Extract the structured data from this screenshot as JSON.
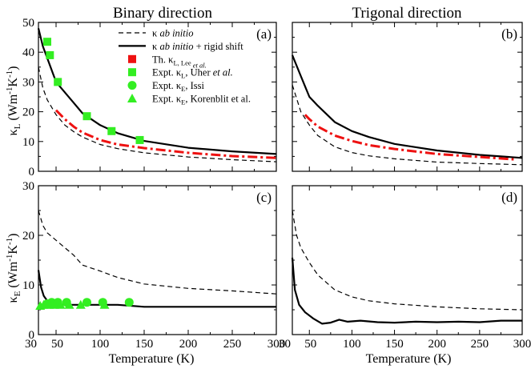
{
  "figure": {
    "title_left": "Binary direction",
    "title_right": "Trigonal direction",
    "x_label": "Temperature (K)",
    "y_label_top": {
      "sym": "κ",
      "sub": "L",
      "unit": "(Wm",
      "exp1": "-1",
      "mid": "K",
      "exp2": "-1",
      "close": ")"
    },
    "y_label_bottom": {
      "sym": "κ",
      "sub": "E",
      "unit": "(Wm",
      "exp1": "-1",
      "mid": "K",
      "exp2": "-1",
      "close": ")"
    },
    "colors": {
      "red": "#ee1111",
      "green": "#33ee22",
      "black": "#000000"
    }
  },
  "legend": [
    {
      "key": "dashed",
      "text": [
        {
          "t": "κ "
        },
        {
          "t": "ab initio",
          "style": "italic"
        }
      ]
    },
    {
      "key": "solid",
      "text": [
        {
          "t": "κ "
        },
        {
          "t": "ab initio",
          "style": "italic"
        },
        {
          "t": " + rigid shift"
        }
      ]
    },
    {
      "key": "red-square",
      "text": [
        {
          "t": "Th. κ"
        },
        {
          "t": "L, Lee ",
          "style": "sub"
        },
        {
          "t": "et al.",
          "style": "sub-italic"
        }
      ]
    },
    {
      "key": "green-square",
      "text": [
        {
          "t": "Expt. κ"
        },
        {
          "t": "L",
          "style": "sub"
        },
        {
          "t": ", Uher "
        },
        {
          "t": "et al.",
          "style": "italic"
        }
      ]
    },
    {
      "key": "green-circle",
      "text": [
        {
          "t": "Expt. κ"
        },
        {
          "t": "E",
          "style": "sub"
        },
        {
          "t": ", Issi"
        }
      ]
    },
    {
      "key": "green-triangle",
      "text": [
        {
          "t": "Expt. κ"
        },
        {
          "t": "E",
          "style": "sub"
        },
        {
          "t": ", Korenblit et al."
        }
      ]
    }
  ],
  "chart_data": [
    {
      "type": "line",
      "panel": "a",
      "tag": "(a)",
      "xlim": [
        30,
        300
      ],
      "ylim": [
        0,
        50
      ],
      "yticks": [
        "0",
        "10",
        "20",
        "30",
        "40",
        "50"
      ],
      "xticks": [],
      "series": [
        {
          "kind": "solid",
          "x": [
            30,
            35,
            40,
            50,
            60,
            70,
            80,
            100,
            120,
            150,
            200,
            250,
            300
          ],
          "y": [
            48,
            42,
            38,
            30,
            26.5,
            23,
            19.5,
            15.5,
            12.8,
            10.2,
            7.9,
            6.7,
            5.8
          ]
        },
        {
          "kind": "dashed",
          "x": [
            30,
            35,
            40,
            50,
            60,
            70,
            80,
            100,
            120,
            150,
            200,
            250,
            300
          ],
          "y": [
            35,
            28,
            24,
            19,
            15.5,
            13.3,
            11.5,
            9,
            7.6,
            6.2,
            4.8,
            3.9,
            3.2
          ]
        },
        {
          "kind": "dashdot",
          "x": [
            50,
            60,
            70,
            80,
            100,
            120,
            150,
            200,
            250,
            300
          ],
          "y": [
            20.5,
            17.5,
            15,
            13,
            10.5,
            9,
            7.8,
            6.2,
            5.1,
            4.5
          ]
        },
        {
          "kind": "green-square",
          "x": [
            40,
            43,
            52,
            85,
            113,
            145
          ],
          "y": [
            43.5,
            39,
            30,
            18.5,
            13.5,
            10.5
          ]
        }
      ]
    },
    {
      "type": "line",
      "panel": "b",
      "tag": "(b)",
      "xlim": [
        30,
        300
      ],
      "ylim": [
        0,
        50
      ],
      "yticks": [],
      "xticks": [],
      "series": [
        {
          "kind": "solid",
          "x": [
            30,
            40,
            50,
            60,
            80,
            100,
            120,
            150,
            200,
            250,
            300
          ],
          "y": [
            39,
            32,
            25,
            22,
            16.5,
            13.5,
            11.5,
            9.2,
            7,
            5.5,
            4.5
          ]
        },
        {
          "kind": "dashed",
          "x": [
            30,
            40,
            50,
            60,
            80,
            100,
            120,
            150,
            200,
            250,
            300
          ],
          "y": [
            29,
            20,
            15.5,
            12,
            8.2,
            6.3,
            5.2,
            4.2,
            3.1,
            2.6,
            2.2
          ]
        },
        {
          "kind": "dashdot",
          "x": [
            45,
            50,
            60,
            80,
            100,
            120,
            150,
            200,
            250,
            290
          ],
          "y": [
            19,
            17.5,
            15,
            12,
            10.2,
            8.8,
            7.5,
            5.8,
            4.8,
            4
          ]
        }
      ]
    },
    {
      "type": "line",
      "panel": "c",
      "tag": "(c)",
      "xlim": [
        30,
        300
      ],
      "ylim": [
        0,
        30
      ],
      "yticks": [
        "0",
        "10",
        "20",
        "30"
      ],
      "xticks": [
        "30",
        "50",
        "100",
        "150",
        "200",
        "250",
        "300"
      ],
      "series": [
        {
          "kind": "dashed",
          "x": [
            30,
            35,
            40,
            50,
            60,
            70,
            80,
            100,
            120,
            150,
            200,
            250,
            300
          ],
          "y": [
            25,
            22,
            20.5,
            19,
            17.5,
            16,
            14,
            12.8,
            11.5,
            10.2,
            9.3,
            8.8,
            8.2
          ]
        },
        {
          "kind": "solid",
          "x": [
            30,
            33,
            36,
            40,
            45,
            50,
            60,
            80,
            100,
            120,
            150,
            200,
            250,
            300
          ],
          "y": [
            13,
            9.5,
            7.8,
            6.8,
            6.4,
            6.2,
            6,
            6,
            6,
            6,
            5.6,
            5.6,
            5.6,
            5.6
          ]
        },
        {
          "kind": "green-circle",
          "x": [
            40,
            45,
            52,
            62,
            85,
            103,
            133
          ],
          "y": [
            6.2,
            6.5,
            6.5,
            6.5,
            6.5,
            6.5,
            6.5
          ]
        },
        {
          "kind": "green-triangle",
          "x": [
            32,
            36,
            42,
            48,
            55,
            65,
            78,
            105
          ],
          "y": [
            5.8,
            6,
            6,
            6,
            6,
            6,
            6,
            6
          ]
        }
      ]
    },
    {
      "type": "line",
      "panel": "d",
      "tag": "(d)",
      "xlim": [
        30,
        300
      ],
      "ylim": [
        0,
        30
      ],
      "yticks": [],
      "xticks": [
        "30",
        "50",
        "100",
        "150",
        "200",
        "250",
        "300"
      ],
      "series": [
        {
          "kind": "dashed",
          "x": [
            30,
            35,
            40,
            50,
            60,
            70,
            80,
            100,
            120,
            150,
            200,
            250,
            300
          ],
          "y": [
            25,
            20,
            17.5,
            14.5,
            12,
            10.5,
            9,
            7.6,
            6.8,
            6.2,
            5.6,
            5.2,
            5
          ]
        },
        {
          "kind": "solid",
          "x": [
            30,
            33,
            38,
            45,
            55,
            65,
            75,
            85,
            95,
            110,
            130,
            150,
            175,
            200,
            225,
            250,
            275,
            300
          ],
          "y": [
            15.5,
            9,
            6,
            4.5,
            3.2,
            2.2,
            2.4,
            3,
            2.6,
            2.8,
            2.5,
            2.4,
            2.6,
            2.5,
            2.6,
            2.5,
            2.8,
            2.8
          ]
        }
      ]
    }
  ]
}
